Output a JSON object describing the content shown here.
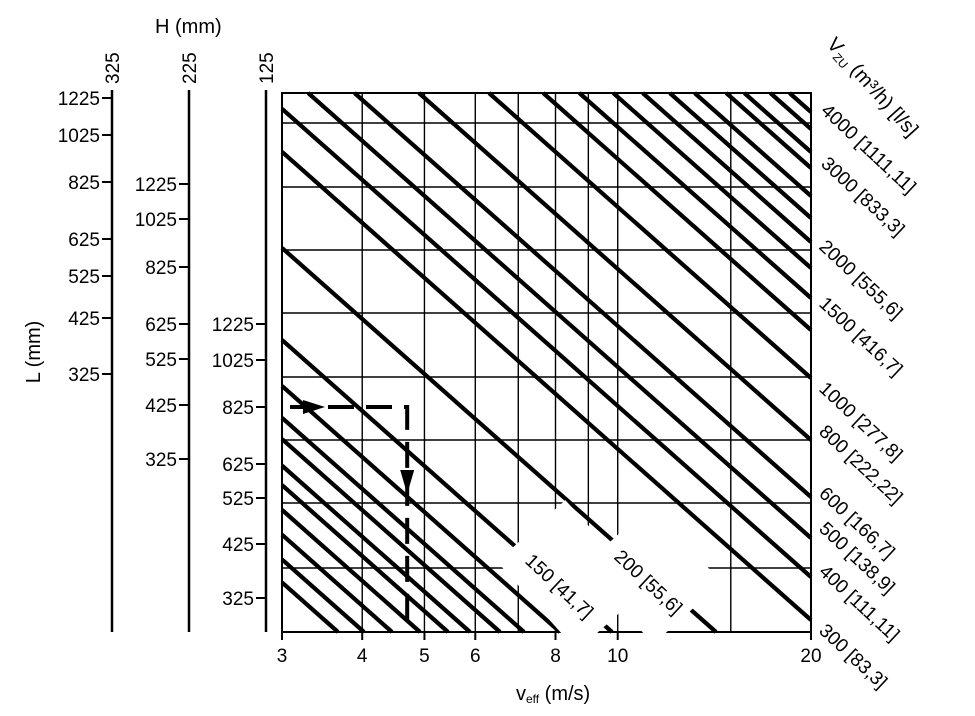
{
  "chart_data": {
    "type": "line",
    "scale": "log-log",
    "x_axis": {
      "label_main": "v",
      "label_sub": "eff",
      "label_unit": " (m/s)",
      "range": [
        3,
        20
      ],
      "ticks": [
        3,
        4,
        5,
        6,
        8,
        10,
        20
      ],
      "tick_labels": [
        "3",
        "4",
        "5",
        "6",
        "8",
        "10",
        "20"
      ]
    },
    "y_axes": {
      "L_title": "L (mm)",
      "H_title": "H (mm)",
      "columns": [
        {
          "id": "H325",
          "header": "325",
          "values": [
            1225,
            1025,
            825,
            625,
            525,
            425,
            325
          ],
          "labels": [
            "1225",
            "1025",
            "825",
            "625",
            "525",
            "425",
            "325"
          ]
        },
        {
          "id": "H225",
          "header": "225",
          "values": [
            1225,
            1025,
            825,
            625,
            525,
            425,
            325
          ],
          "labels": [
            "1225",
            "1025",
            "825",
            "625",
            "525",
            "425",
            "325"
          ]
        },
        {
          "id": "H125",
          "header": "125",
          "values": [
            1225,
            1025,
            825,
            625,
            525,
            425,
            325
          ],
          "labels": [
            "1225",
            "1025",
            "825",
            "625",
            "525",
            "425",
            "325"
          ]
        }
      ]
    },
    "series_title": {
      "main": "V",
      "sub": "ZU",
      "unit": " (m³/h) [l/s]"
    },
    "series": [
      {
        "label": "4000 [1111,11]",
        "m3h": 4000
      },
      {
        "label": "3000 [833,3]",
        "m3h": 3000
      },
      {
        "label": "2000 [555,6]",
        "m3h": 2000
      },
      {
        "label": "1500 [416,7]",
        "m3h": 1500
      },
      {
        "label": "1000 [277,8]",
        "m3h": 1000
      },
      {
        "label": "800 [222,22]",
        "m3h": 800
      },
      {
        "label": "600 [166,7]",
        "m3h": 600
      },
      {
        "label": "500 [138,9]",
        "m3h": 500
      },
      {
        "label": "400 [111,11]",
        "m3h": 400
      },
      {
        "label": "300 [83,3]",
        "m3h": 300
      },
      {
        "label": "200 [55,6]",
        "m3h": 200
      },
      {
        "label": "150 [41,7]",
        "m3h": 150
      }
    ],
    "example": {
      "H": 125,
      "L": 825,
      "v_eff": 4.7
    },
    "grid": true
  }
}
